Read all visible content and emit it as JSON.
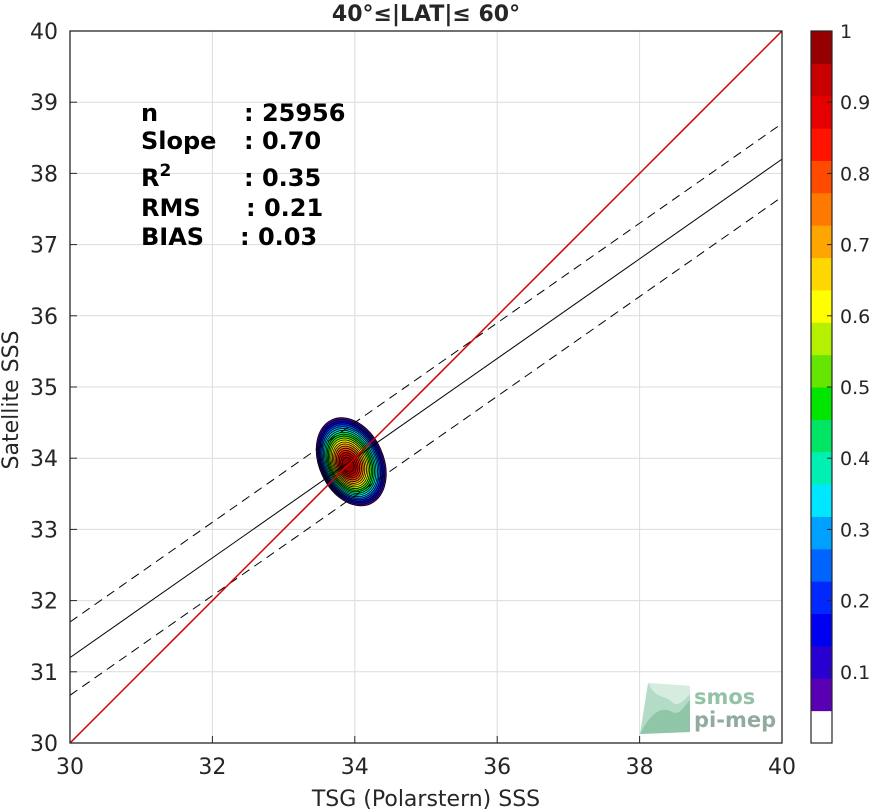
{
  "chart_data": {
    "type": "heatmap",
    "title": "40°≤|LAT|≤ 60°",
    "xlabel": "TSG (Polarstern) SSS",
    "ylabel": "Satellite SSS",
    "xlim": [
      30,
      40
    ],
    "ylim": [
      30,
      40
    ],
    "xticks": [
      "30",
      "32",
      "34",
      "36",
      "38",
      "40"
    ],
    "yticks": [
      "30",
      "31",
      "32",
      "33",
      "34",
      "35",
      "36",
      "37",
      "38",
      "39",
      "40"
    ],
    "grid": true,
    "density_peak": {
      "x": 33.9,
      "y": 33.9
    },
    "density_extent": {
      "x": [
        33.5,
        34.4
      ],
      "y": [
        33.3,
        34.6
      ]
    },
    "lines": {
      "identity": {
        "x": [
          30,
          40
        ],
        "y": [
          30,
          40
        ],
        "color": "#cc0000",
        "style": "solid"
      },
      "regression": {
        "x": [
          30,
          40
        ],
        "y": [
          31.2,
          38.2
        ],
        "color": "#000000",
        "style": "solid"
      },
      "upper_bound": {
        "x": [
          30,
          40
        ],
        "y": [
          31.7,
          38.7
        ],
        "color": "#000000",
        "style": "dashed"
      },
      "lower_bound": {
        "x": [
          30,
          40
        ],
        "y": [
          30.67,
          37.67
        ],
        "color": "#000000",
        "style": "dashed"
      }
    },
    "colorbar": {
      "range": [
        0,
        1
      ],
      "ticks": [
        "0.1",
        "0.2",
        "0.3",
        "0.4",
        "0.5",
        "0.6",
        "0.7",
        "0.8",
        "0.9",
        "1"
      ],
      "colors": [
        "#ffffff",
        "#5a00b4",
        "#2800d2",
        "#0000f0",
        "#0028ff",
        "#0064ff",
        "#00a0ff",
        "#00e6ff",
        "#00f0b4",
        "#00e664",
        "#00e600",
        "#64e600",
        "#b4f000",
        "#ffff00",
        "#ffd700",
        "#ffa500",
        "#ff7800",
        "#ff4b00",
        "#ff1400",
        "#e60000",
        "#c80000",
        "#960000"
      ]
    },
    "stats": [
      {
        "label": "n",
        "value": ": 25956"
      },
      {
        "label": "Slope",
        "value": ": 0.70"
      },
      {
        "label": "R",
        "sup": "2",
        "value": ": 0.35"
      },
      {
        "label": "RMS",
        "value": ": 0.21"
      },
      {
        "label": "BIAS",
        "value": ": 0.03"
      }
    ]
  },
  "watermark": {
    "line1": "smos",
    "line2": "pi-mep"
  }
}
